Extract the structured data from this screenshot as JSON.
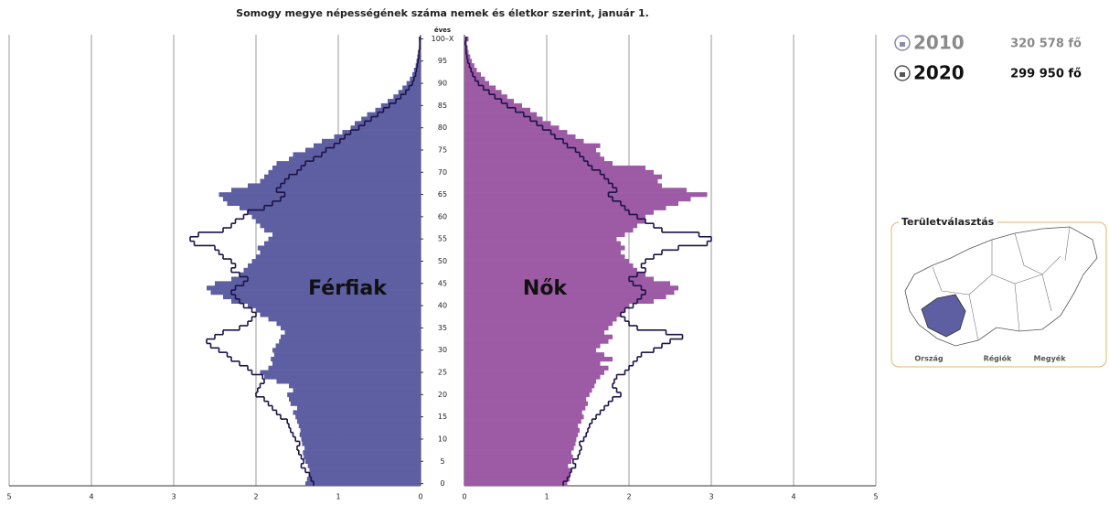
{
  "chart_data": {
    "type": "pyramid",
    "title": "Somogy megye népességének száma nemek és életkor szerint, január 1.",
    "y_label": "éves",
    "ages": [
      0,
      1,
      2,
      3,
      4,
      5,
      6,
      7,
      8,
      9,
      10,
      11,
      12,
      13,
      14,
      15,
      16,
      17,
      18,
      19,
      20,
      21,
      22,
      23,
      24,
      25,
      26,
      27,
      28,
      29,
      30,
      31,
      32,
      33,
      34,
      35,
      36,
      37,
      38,
      39,
      40,
      41,
      42,
      43,
      44,
      45,
      46,
      47,
      48,
      49,
      50,
      51,
      52,
      53,
      54,
      55,
      56,
      57,
      58,
      59,
      60,
      61,
      62,
      63,
      64,
      65,
      66,
      67,
      68,
      69,
      70,
      71,
      72,
      73,
      74,
      75,
      76,
      77,
      78,
      79,
      80,
      81,
      82,
      83,
      84,
      85,
      86,
      87,
      88,
      89,
      90,
      91,
      92,
      93,
      94,
      95,
      96,
      97,
      98,
      99,
      100
    ],
    "ylim": [
      0,
      101
    ],
    "yticks": [
      0,
      5,
      10,
      15,
      20,
      25,
      30,
      35,
      40,
      45,
      50,
      55,
      60,
      65,
      70,
      75,
      80,
      85,
      90,
      95,
      {
        "value": 100,
        "label": "100–X"
      }
    ],
    "xlim": [
      0,
      5
    ],
    "xticks": [
      0,
      1,
      2,
      3,
      4,
      5
    ],
    "grid": true,
    "outline_color": "#1c1248",
    "series": [
      {
        "name": "Férfiak",
        "side": "left",
        "color": "#5e5ea2",
        "values": [
          1.4,
          1.38,
          1.36,
          1.35,
          1.37,
          1.4,
          1.42,
          1.43,
          1.41,
          1.44,
          1.45,
          1.47,
          1.46,
          1.48,
          1.5,
          1.52,
          1.55,
          1.5,
          1.58,
          1.6,
          1.62,
          1.55,
          1.6,
          1.75,
          1.9,
          1.95,
          1.85,
          1.8,
          1.82,
          1.78,
          1.8,
          1.76,
          1.72,
          1.7,
          1.65,
          1.7,
          1.75,
          1.85,
          1.95,
          2.0,
          2.1,
          2.3,
          2.4,
          2.55,
          2.6,
          2.5,
          2.3,
          2.2,
          2.15,
          2.1,
          2.05,
          2.0,
          1.95,
          1.98,
          1.9,
          1.85,
          1.8,
          1.9,
          1.95,
          2.0,
          2.05,
          2.1,
          2.2,
          2.35,
          2.4,
          2.45,
          2.3,
          2.1,
          1.95,
          1.9,
          1.85,
          1.8,
          1.75,
          1.6,
          1.55,
          1.4,
          1.3,
          1.2,
          1.05,
          0.95,
          0.85,
          0.8,
          0.72,
          0.65,
          0.55,
          0.48,
          0.4,
          0.33,
          0.27,
          0.22,
          0.17,
          0.13,
          0.1,
          0.08,
          0.06,
          0.05,
          0.04,
          0.03,
          0.02,
          0.01,
          0.02
        ],
        "values_2010": [
          1.3,
          1.33,
          1.35,
          1.4,
          1.45,
          1.42,
          1.45,
          1.48,
          1.5,
          1.47,
          1.52,
          1.55,
          1.58,
          1.6,
          1.62,
          1.7,
          1.75,
          1.8,
          1.85,
          1.9,
          2.0,
          1.98,
          1.95,
          1.9,
          1.92,
          2.05,
          2.1,
          2.2,
          2.3,
          2.35,
          2.45,
          2.55,
          2.6,
          2.5,
          2.4,
          2.2,
          2.1,
          2.05,
          2.0,
          2.05,
          2.15,
          2.2,
          2.25,
          2.3,
          2.25,
          2.15,
          2.1,
          2.2,
          2.3,
          2.25,
          2.3,
          2.4,
          2.45,
          2.5,
          2.75,
          2.8,
          2.7,
          2.4,
          2.3,
          2.25,
          2.15,
          2.1,
          1.9,
          1.8,
          1.7,
          1.65,
          1.75,
          1.7,
          1.65,
          1.6,
          1.5,
          1.45,
          1.4,
          1.3,
          1.2,
          1.15,
          1.05,
          0.98,
          0.92,
          0.85,
          0.75,
          0.68,
          0.6,
          0.52,
          0.45,
          0.38,
          0.3,
          0.24,
          0.18,
          0.14,
          0.1,
          0.08,
          0.06,
          0.05,
          0.04,
          0.03,
          0.02,
          0.02,
          0.01,
          0.01,
          0.01
        ]
      },
      {
        "name": "Nők",
        "side": "right",
        "color": "#9c5ba4",
        "values": [
          1.25,
          1.28,
          1.27,
          1.3,
          1.26,
          1.3,
          1.32,
          1.3,
          1.33,
          1.35,
          1.36,
          1.38,
          1.4,
          1.38,
          1.42,
          1.45,
          1.43,
          1.47,
          1.5,
          1.48,
          1.52,
          1.55,
          1.58,
          1.6,
          1.65,
          1.7,
          1.75,
          1.65,
          1.8,
          1.7,
          1.6,
          1.65,
          1.75,
          1.8,
          1.7,
          1.75,
          1.8,
          1.85,
          1.9,
          1.95,
          2.0,
          2.3,
          2.45,
          2.55,
          2.6,
          2.5,
          2.3,
          2.2,
          2.1,
          2.05,
          2.0,
          1.95,
          1.9,
          1.95,
          1.9,
          1.85,
          1.95,
          2.05,
          2.1,
          2.2,
          2.2,
          2.3,
          2.45,
          2.6,
          2.75,
          2.95,
          2.7,
          2.4,
          2.35,
          2.4,
          2.3,
          2.2,
          1.8,
          1.7,
          1.65,
          1.6,
          1.65,
          1.45,
          1.35,
          1.25,
          1.15,
          1.05,
          0.95,
          0.88,
          0.8,
          0.7,
          0.6,
          0.52,
          0.45,
          0.38,
          0.3,
          0.25,
          0.2,
          0.15,
          0.12,
          0.09,
          0.07,
          0.05,
          0.04,
          0.03,
          0.05
        ],
        "values_2010": [
          1.2,
          1.25,
          1.28,
          1.3,
          1.35,
          1.32,
          1.38,
          1.4,
          1.42,
          1.4,
          1.45,
          1.48,
          1.5,
          1.52,
          1.55,
          1.6,
          1.65,
          1.7,
          1.75,
          1.8,
          1.9,
          1.85,
          1.8,
          1.82,
          1.85,
          1.95,
          2.0,
          2.05,
          2.1,
          2.15,
          2.3,
          2.4,
          2.5,
          2.65,
          2.45,
          2.1,
          2.0,
          1.95,
          1.9,
          1.95,
          2.05,
          2.1,
          2.15,
          2.2,
          2.15,
          2.05,
          2.0,
          2.1,
          2.2,
          2.15,
          2.2,
          2.3,
          2.4,
          2.6,
          2.95,
          3.0,
          2.85,
          2.4,
          2.3,
          2.2,
          2.1,
          2.0,
          1.95,
          1.9,
          1.8,
          1.75,
          1.85,
          1.8,
          1.75,
          1.7,
          1.65,
          1.55,
          1.5,
          1.45,
          1.4,
          1.35,
          1.25,
          1.2,
          1.1,
          1.05,
          0.95,
          0.88,
          0.8,
          0.72,
          0.62,
          0.52,
          0.45,
          0.37,
          0.3,
          0.23,
          0.17,
          0.13,
          0.1,
          0.08,
          0.06,
          0.04,
          0.03,
          0.02,
          0.02,
          0.01,
          0.02
        ]
      }
    ]
  },
  "side_panel": {
    "years": [
      {
        "year": "2010",
        "total": "320 578 fő"
      },
      {
        "year": "2020",
        "total": "299 950 fő"
      }
    ],
    "region_box": {
      "title": "Területválasztás",
      "tabs": [
        "Ország",
        "Régiók",
        "Megyék"
      ]
    }
  }
}
